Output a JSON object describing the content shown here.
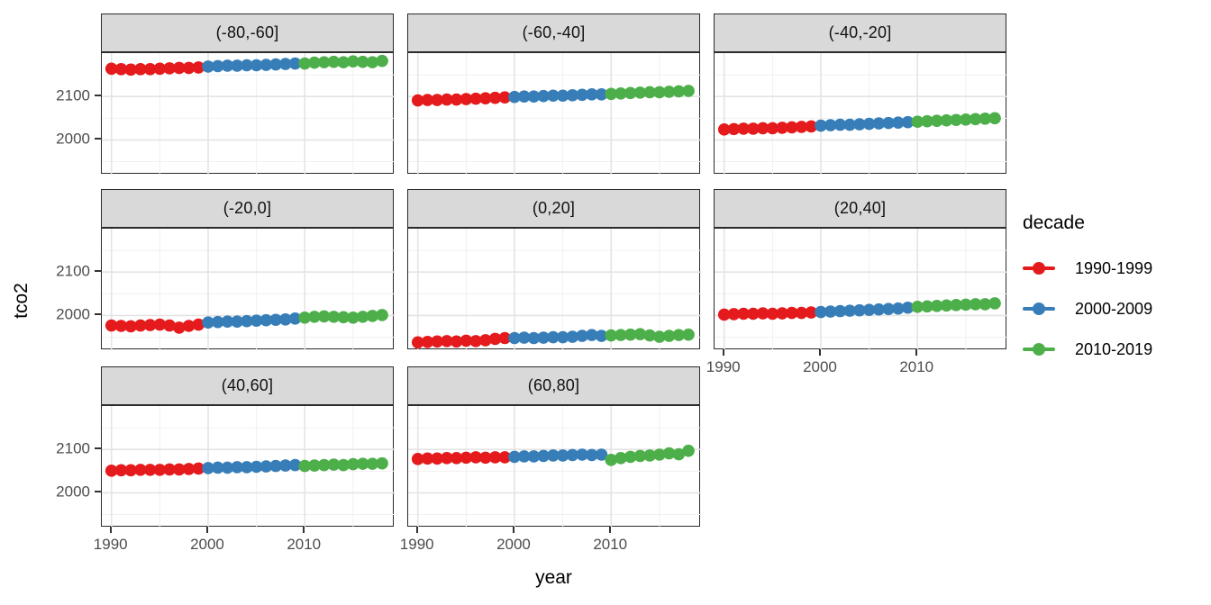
{
  "chart_data": {
    "type": "scatter",
    "title": "",
    "xlabel": "year",
    "ylabel": "tco2",
    "x_domain": [
      1989,
      2019.3
    ],
    "y_domain": [
      1920,
      2200
    ],
    "x_ticks": [
      1990,
      2000,
      2010
    ],
    "x_minor_ticks": [
      1995,
      2005,
      2015
    ],
    "y_ticks": [
      2000,
      2100
    ],
    "y_minor_ticks": [
      1950,
      2050,
      2150
    ],
    "grid": "on",
    "years": [
      1990,
      1991,
      1992,
      1993,
      1994,
      1995,
      1996,
      1997,
      1998,
      1999,
      2000,
      2001,
      2002,
      2003,
      2004,
      2005,
      2006,
      2007,
      2008,
      2009,
      2010,
      2011,
      2012,
      2013,
      2014,
      2015,
      2016,
      2017,
      2018
    ],
    "legend": {
      "title": "decade",
      "position": "right",
      "entries": [
        {
          "label": "1990-1999",
          "color": "#E41A1C",
          "year_start": 1990,
          "year_end": 1999
        },
        {
          "label": "2000-2009",
          "color": "#377EB8",
          "year_start": 2000,
          "year_end": 2009
        },
        {
          "label": "2010-2019",
          "color": "#4DAF4A",
          "year_start": 2010,
          "year_end": 2019
        }
      ]
    },
    "facets": [
      {
        "label": "(-80,-60]",
        "x_axis": false,
        "values": [
          2164,
          2163,
          2162,
          2163,
          2163,
          2164,
          2165,
          2166,
          2166,
          2167,
          2169,
          2170,
          2171,
          2171,
          2172,
          2172,
          2173,
          2174,
          2175,
          2176,
          2176,
          2178,
          2179,
          2180,
          2179,
          2181,
          2180,
          2179,
          2182
        ]
      },
      {
        "label": "(-60,-40]",
        "x_axis": false,
        "values": [
          2091,
          2092,
          2092,
          2093,
          2093,
          2094,
          2095,
          2096,
          2097,
          2098,
          2099,
          2100,
          2100,
          2101,
          2102,
          2102,
          2103,
          2104,
          2105,
          2105,
          2106,
          2107,
          2108,
          2109,
          2110,
          2110,
          2111,
          2112,
          2113
        ]
      },
      {
        "label": "(-40,-20]",
        "x_axis": false,
        "values": [
          2024,
          2025,
          2026,
          2026,
          2027,
          2027,
          2028,
          2029,
          2030,
          2031,
          2033,
          2034,
          2035,
          2035,
          2036,
          2037,
          2038,
          2039,
          2040,
          2041,
          2042,
          2043,
          2044,
          2045,
          2046,
          2047,
          2048,
          2049,
          2050
        ]
      },
      {
        "label": "(-20,0]",
        "x_axis": false,
        "values": [
          1977,
          1976,
          1975,
          1977,
          1978,
          1979,
          1977,
          1972,
          1976,
          1979,
          1984,
          1985,
          1986,
          1986,
          1987,
          1988,
          1989,
          1990,
          1991,
          1993,
          1995,
          1997,
          1998,
          1997,
          1996,
          1995,
          1997,
          1999,
          2001
        ]
      },
      {
        "label": "(0,20]",
        "x_axis": false,
        "values": [
          1938,
          1939,
          1940,
          1941,
          1940,
          1942,
          1941,
          1943,
          1946,
          1948,
          1948,
          1949,
          1948,
          1949,
          1950,
          1950,
          1951,
          1953,
          1955,
          1953,
          1954,
          1955,
          1956,
          1957,
          1954,
          1951,
          1953,
          1955,
          1956
        ]
      },
      {
        "label": "(20,40]",
        "x_axis": true,
        "values": [
          2002,
          2003,
          2004,
          2004,
          2005,
          2004,
          2005,
          2006,
          2006,
          2007,
          2008,
          2009,
          2010,
          2011,
          2012,
          2013,
          2014,
          2015,
          2016,
          2018,
          2020,
          2021,
          2022,
          2023,
          2024,
          2025,
          2026,
          2026,
          2028
        ]
      },
      {
        "label": "(40,60]",
        "x_axis": true,
        "values": [
          2051,
          2052,
          2052,
          2053,
          2053,
          2053,
          2054,
          2054,
          2055,
          2056,
          2057,
          2058,
          2058,
          2059,
          2059,
          2060,
          2061,
          2062,
          2063,
          2064,
          2062,
          2063,
          2064,
          2065,
          2064,
          2066,
          2067,
          2067,
          2068
        ]
      },
      {
        "label": "(60,80]",
        "x_axis": true,
        "values": [
          2078,
          2079,
          2079,
          2080,
          2080,
          2081,
          2082,
          2081,
          2082,
          2082,
          2083,
          2084,
          2084,
          2085,
          2086,
          2086,
          2087,
          2088,
          2087,
          2088,
          2076,
          2080,
          2083,
          2085,
          2086,
          2088,
          2091,
          2089,
          2097
        ]
      }
    ]
  }
}
